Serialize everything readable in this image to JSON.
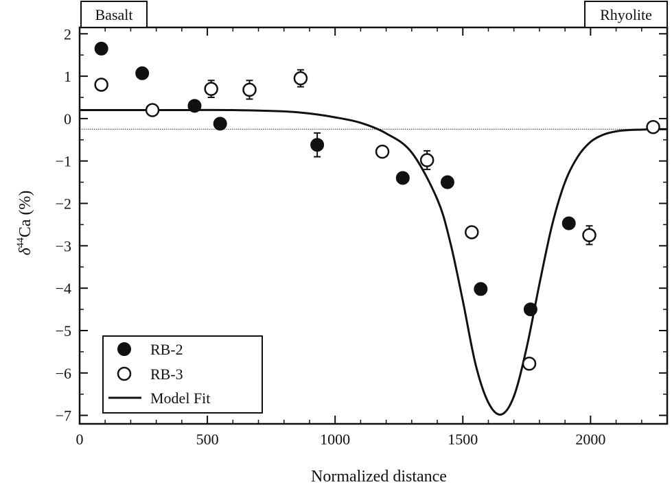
{
  "chart_data": {
    "type": "scatter",
    "xlabel": "Normalized distance",
    "ylabel_main": "δ",
    "ylabel_sup": "44",
    "ylabel_rest": "Ca (%)",
    "xlim": [
      0,
      2300
    ],
    "ylim": [
      -7.2,
      2.15
    ],
    "x_ticks": [
      0,
      500,
      1000,
      1500,
      2000
    ],
    "x_tick_labels": [
      "0",
      "500",
      "1000",
      "1500",
      "2000"
    ],
    "y_ticks": [
      2,
      1,
      0,
      -1,
      -2,
      -3,
      -4,
      -5,
      -6,
      -7
    ],
    "y_tick_labels": [
      "2",
      "1",
      "0",
      "−1",
      "−2",
      "−3",
      "−4",
      "−5",
      "−6",
      "−7"
    ],
    "corner_labels": {
      "left": "Basalt",
      "right": "Rhyolite"
    },
    "reference_line_y": -0.25,
    "legend": {
      "placement": "bottom-left",
      "entries": [
        "RB-2",
        "RB-3",
        "Model Fit"
      ]
    },
    "series": [
      {
        "name": "RB-2",
        "marker": "filled-circle",
        "points": [
          {
            "x": 85,
            "y": 1.65,
            "err": 0
          },
          {
            "x": 245,
            "y": 1.07,
            "err": 0
          },
          {
            "x": 450,
            "y": 0.3,
            "err": 0
          },
          {
            "x": 550,
            "y": -0.12,
            "err": 0
          },
          {
            "x": 930,
            "y": -0.62,
            "err": 0.28
          },
          {
            "x": 1265,
            "y": -1.4,
            "err": 0
          },
          {
            "x": 1440,
            "y": -1.5,
            "err": 0
          },
          {
            "x": 1570,
            "y": -4.02,
            "err": 0
          },
          {
            "x": 1765,
            "y": -4.5,
            "err": 0
          },
          {
            "x": 1915,
            "y": -2.47,
            "err": 0
          }
        ]
      },
      {
        "name": "RB-3",
        "marker": "open-circle",
        "points": [
          {
            "x": 85,
            "y": 0.8,
            "err": 0
          },
          {
            "x": 285,
            "y": 0.2,
            "err": 0
          },
          {
            "x": 515,
            "y": 0.7,
            "err": 0.2
          },
          {
            "x": 665,
            "y": 0.68,
            "err": 0.22
          },
          {
            "x": 865,
            "y": 0.95,
            "err": 0.2
          },
          {
            "x": 1185,
            "y": -0.78,
            "err": 0
          },
          {
            "x": 1360,
            "y": -0.98,
            "err": 0.22
          },
          {
            "x": 1535,
            "y": -2.68,
            "err": 0
          },
          {
            "x": 1760,
            "y": -5.78,
            "err": 0
          },
          {
            "x": 1995,
            "y": -2.75,
            "err": 0.22
          },
          {
            "x": 2245,
            "y": -0.2,
            "err": 0.12
          }
        ]
      },
      {
        "name": "Model Fit",
        "marker": "line",
        "x": [
          0,
          200,
          400,
          600,
          800,
          900,
          1000,
          1100,
          1200,
          1300,
          1400,
          1450,
          1500,
          1550,
          1600,
          1650,
          1700,
          1750,
          1800,
          1850,
          1900,
          1950,
          2000,
          2050,
          2100,
          2150,
          2200,
          2250,
          2300
        ],
        "y": [
          0.2,
          0.2,
          0.2,
          0.2,
          0.17,
          0.12,
          0.03,
          -0.1,
          -0.35,
          -0.8,
          -1.9,
          -2.9,
          -4.3,
          -5.8,
          -6.7,
          -6.98,
          -6.55,
          -5.4,
          -3.9,
          -2.5,
          -1.5,
          -0.9,
          -0.55,
          -0.38,
          -0.3,
          -0.27,
          -0.26,
          -0.25,
          -0.25
        ]
      }
    ]
  }
}
